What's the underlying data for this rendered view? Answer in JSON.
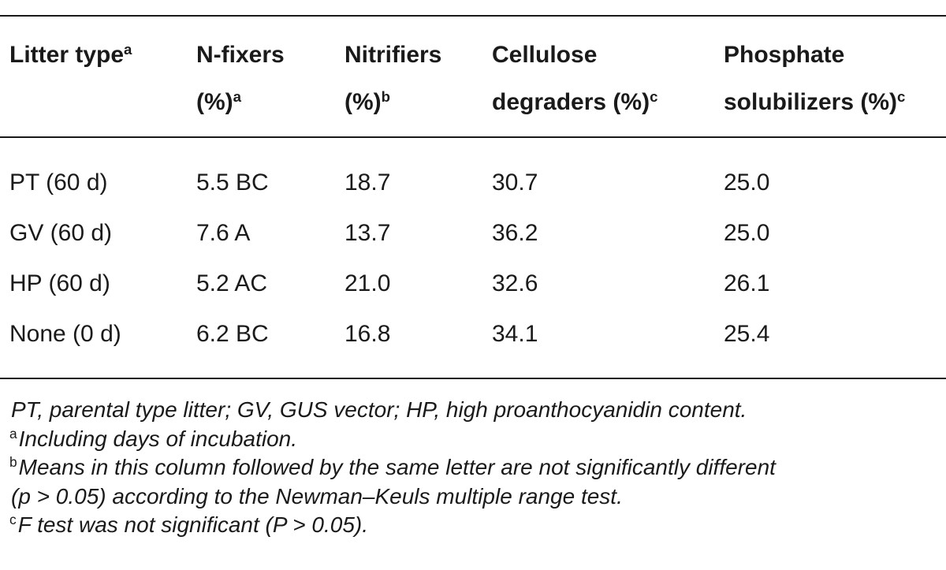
{
  "table": {
    "columns": [
      {
        "line1": "Litter type",
        "sup1": "a",
        "line2": "",
        "sup2": ""
      },
      {
        "line1": "N-fixers",
        "sup1": "",
        "line2": "(%)",
        "sup2": "a"
      },
      {
        "line1": "Nitrifiers",
        "sup1": "",
        "line2": "(%)",
        "sup2": "b"
      },
      {
        "line1": "Cellulose",
        "sup1": "",
        "line2": "degraders (%)",
        "sup2": "c"
      },
      {
        "line1": "Phosphate",
        "sup1": "",
        "line2": "solubilizers (%)",
        "sup2": "c"
      }
    ],
    "rows": [
      [
        "PT (60 d)",
        "5.5 BC",
        "18.7",
        "30.7",
        "25.0"
      ],
      [
        "GV (60 d)",
        "7.6 A",
        "13.7",
        "36.2",
        "25.0"
      ],
      [
        "HP (60 d)",
        "5.2 AC",
        "21.0",
        "32.6",
        "26.1"
      ],
      [
        "None (0  d)",
        "6.2 BC",
        "16.8",
        "34.1",
        "25.4"
      ]
    ]
  },
  "footnotes": [
    {
      "mark": "",
      "text": "PT, parental type litter; GV, GUS vector; HP, high proanthocyanidin content."
    },
    {
      "mark": "a",
      "text": "Including days of incubation."
    },
    {
      "mark": "b",
      "text": "Means in this column followed by the same letter are not significantly different"
    },
    {
      "mark": "",
      "text": "(p > 0.05) according to the Newman–Keuls multiple range test."
    },
    {
      "mark": "c",
      "text": "F test was not significant (P > 0.05)."
    }
  ]
}
